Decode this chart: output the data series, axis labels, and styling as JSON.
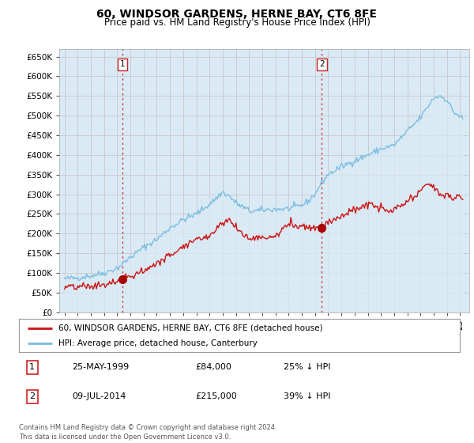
{
  "title": "60, WINDSOR GARDENS, HERNE BAY, CT6 8FE",
  "subtitle": "Price paid vs. HM Land Registry's House Price Index (HPI)",
  "title_fontsize": 10,
  "subtitle_fontsize": 8.5,
  "hpi_color": "#7bbde0",
  "hpi_fill_color": "#daeaf5",
  "price_color": "#cc1111",
  "marker_color": "#aa0000",
  "vline_color": "#cc2222",
  "grid_color": "#c8c8c8",
  "bg_color": "#ffffff",
  "chart_bg": "#daeaf5",
  "ylim": [
    0,
    670000
  ],
  "yticks": [
    0,
    50000,
    100000,
    150000,
    200000,
    250000,
    300000,
    350000,
    400000,
    450000,
    500000,
    550000,
    600000,
    650000
  ],
  "ytick_labels": [
    "£0",
    "£50K",
    "£100K",
    "£150K",
    "£200K",
    "£250K",
    "£300K",
    "£350K",
    "£400K",
    "£450K",
    "£500K",
    "£550K",
    "£600K",
    "£650K"
  ],
  "transaction1": {
    "date_num": 1999.38,
    "price": 84000,
    "label": "1",
    "date_str": "25-MAY-1999",
    "amount": "£84,000",
    "pct": "25% ↓ HPI"
  },
  "transaction2": {
    "date_num": 2014.52,
    "price": 215000,
    "label": "2",
    "date_str": "09-JUL-2014",
    "amount": "£215,000",
    "pct": "39% ↓ HPI"
  },
  "legend_label1": "60, WINDSOR GARDENS, HERNE BAY, CT6 8FE (detached house)",
  "legend_label2": "HPI: Average price, detached house, Canterbury",
  "footer": "Contains HM Land Registry data © Crown copyright and database right 2024.\nThis data is licensed under the Open Government Licence v3.0.",
  "xmin": 1995.0,
  "xmax": 2025.5
}
